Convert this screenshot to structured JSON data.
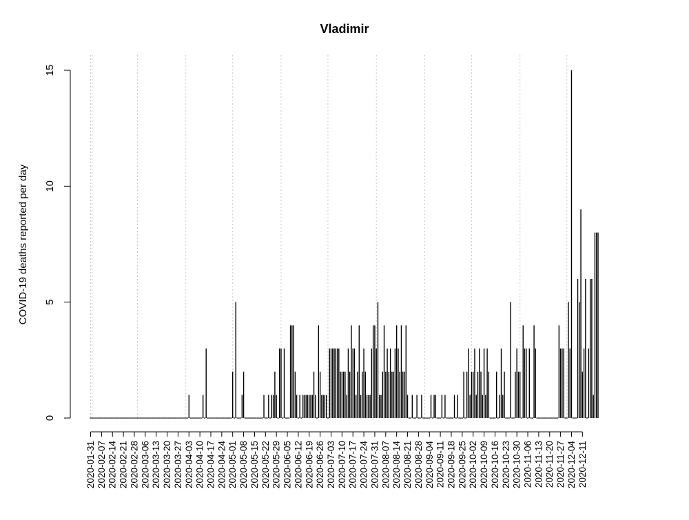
{
  "chart_data": {
    "type": "bar",
    "title": "Vladimir",
    "xlabel": "",
    "ylabel": "COVID-19 deaths reported per day",
    "ylim": [
      0,
      15
    ],
    "y_ticks": [
      0,
      5,
      10,
      15
    ],
    "x_tick_labels": [
      "2020-01-31",
      "2020-02-07",
      "2020-02-14",
      "2020-02-21",
      "2020-02-28",
      "2020-03-06",
      "2020-03-13",
      "2020-03-20",
      "2020-03-27",
      "2020-04-03",
      "2020-04-10",
      "2020-04-17",
      "2020-04-24",
      "2020-05-01",
      "2020-05-08",
      "2020-05-15",
      "2020-05-22",
      "2020-05-29",
      "2020-06-05",
      "2020-06-12",
      "2020-06-19",
      "2020-06-26",
      "2020-07-03",
      "2020-07-10",
      "2020-07-17",
      "2020-07-24",
      "2020-07-31",
      "2020-08-07",
      "2020-08-14",
      "2020-08-21",
      "2020-08-28",
      "2020-09-04",
      "2020-09-11",
      "2020-09-18",
      "2020-09-25",
      "2020-10-02",
      "2020-10-09",
      "2020-10-16",
      "2020-10-23",
      "2020-10-30",
      "2020-11-06",
      "2020-11-13",
      "2020-11-20",
      "2020-11-27",
      "2020-12-04",
      "2020-12-11"
    ],
    "month_lines": [
      "2020-02-01",
      "2020-03-01",
      "2020-04-01",
      "2020-05-01",
      "2020-06-01",
      "2020-07-01",
      "2020-08-01",
      "2020-09-01",
      "2020-10-01",
      "2020-11-01",
      "2020-12-01"
    ],
    "start_date": "2020-01-31",
    "values": [
      0,
      0,
      0,
      0,
      0,
      0,
      0,
      0,
      0,
      0,
      0,
      0,
      0,
      0,
      0,
      0,
      0,
      0,
      0,
      0,
      0,
      0,
      0,
      0,
      0,
      0,
      0,
      0,
      0,
      0,
      0,
      0,
      0,
      0,
      0,
      0,
      0,
      0,
      0,
      0,
      0,
      0,
      0,
      0,
      0,
      0,
      0,
      0,
      0,
      0,
      0,
      0,
      0,
      0,
      0,
      0,
      0,
      0,
      0,
      0,
      0,
      0,
      0,
      1,
      0,
      0,
      0,
      0,
      0,
      0,
      0,
      0,
      1,
      0,
      3,
      0,
      0,
      0,
      0,
      0,
      0,
      0,
      0,
      0,
      0,
      0,
      0,
      0,
      0,
      0,
      0,
      2,
      0,
      5,
      0,
      0,
      0,
      1,
      2,
      0,
      0,
      0,
      0,
      0,
      0,
      0,
      0,
      0,
      0,
      0,
      0,
      1,
      0,
      0,
      1,
      0,
      1,
      1,
      2,
      1,
      0,
      3,
      3,
      0,
      3,
      0,
      0,
      0,
      4,
      4,
      4,
      2,
      1,
      0,
      1,
      0,
      1,
      1,
      1,
      1,
      1,
      1,
      1,
      2,
      1,
      0,
      4,
      2,
      1,
      1,
      1,
      1,
      0,
      3,
      3,
      3,
      3,
      3,
      3,
      3,
      2,
      2,
      2,
      2,
      1,
      3,
      2,
      4,
      3,
      3,
      1,
      2,
      4,
      1,
      2,
      3,
      2,
      1,
      1,
      1,
      3,
      4,
      4,
      3,
      5,
      1,
      1,
      2,
      4,
      2,
      3,
      2,
      3,
      2,
      2,
      3,
      4,
      3,
      2,
      4,
      2,
      2,
      4,
      1,
      0,
      0,
      1,
      0,
      0,
      1,
      0,
      0,
      1,
      0,
      0,
      0,
      0,
      0,
      1,
      0,
      1,
      1,
      0,
      0,
      0,
      1,
      0,
      1,
      0,
      0,
      0,
      0,
      0,
      1,
      0,
      1,
      0,
      0,
      0,
      2,
      0,
      2,
      3,
      1,
      2,
      2,
      3,
      1,
      2,
      3,
      2,
      1,
      3,
      1,
      3,
      2,
      0,
      0,
      0,
      0,
      2,
      0,
      1,
      3,
      1,
      2,
      0,
      0,
      0,
      5,
      0,
      0,
      2,
      3,
      2,
      2,
      0,
      4,
      3,
      3,
      0,
      3,
      0,
      0,
      4,
      3,
      0,
      0,
      0,
      0,
      0,
      0,
      0,
      0,
      0,
      0,
      0,
      0,
      0,
      0,
      4,
      3,
      3,
      3,
      0,
      0,
      5,
      3,
      15,
      0,
      0,
      0,
      6,
      5,
      9,
      2,
      3,
      6,
      0,
      3,
      6,
      6,
      1,
      8,
      8,
      8
    ]
  }
}
